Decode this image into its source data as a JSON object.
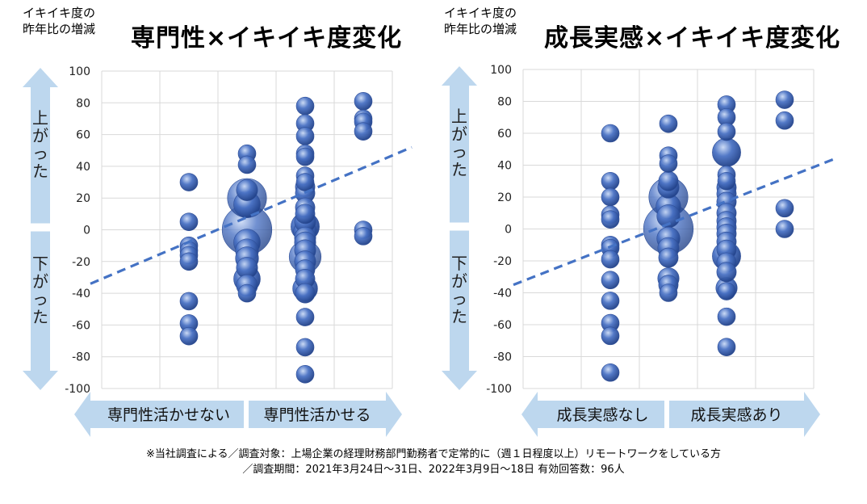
{
  "footnote": {
    "line1": "※当社調査による／調査対象：上場企業の経理財務部門勤務者で定常的に（週１日程度以上）リモートワークをしている方",
    "line2": "／調査期間：2021年3月24日〜31日、2022年3月9日〜18日 有効回答数：96人"
  },
  "colors": {
    "bubble": "#4a72c4",
    "trend": "#4472c4",
    "arrow": "#bdd7ee",
    "grid": "#d9d9d9"
  },
  "chart_data": [
    {
      "type": "scatter",
      "title": "専門性×イキイキ度変化",
      "ylabel": "イキイキ度の昨年比の増減",
      "ylim": [
        -100,
        100
      ],
      "yticks": [
        100,
        80,
        60,
        40,
        20,
        0,
        -20,
        -40,
        -60,
        -80,
        -100
      ],
      "y_arrow_up": "上がった",
      "y_arrow_down": "下がった",
      "x_arrow_left": "専門性活かせない",
      "x_arrow_right": "専門性活かせる",
      "x_categories": 5,
      "grid": true,
      "trendline": {
        "y_left": -34,
        "y_right": 52
      },
      "points": [
        {
          "x": 1,
          "y": 30,
          "s": 1
        },
        {
          "x": 1,
          "y": 5,
          "s": 1
        },
        {
          "x": 1,
          "y": -10,
          "s": 1
        },
        {
          "x": 1,
          "y": -13,
          "s": 1
        },
        {
          "x": 1,
          "y": -16,
          "s": 1
        },
        {
          "x": 1,
          "y": -20,
          "s": 1
        },
        {
          "x": 1,
          "y": -45,
          "s": 1
        },
        {
          "x": 1,
          "y": -59,
          "s": 1
        },
        {
          "x": 1,
          "y": -67,
          "s": 1
        },
        {
          "x": 2,
          "y": 48,
          "s": 1
        },
        {
          "x": 2,
          "y": 41,
          "s": 1
        },
        {
          "x": 2,
          "y": 25,
          "s": 1.2
        },
        {
          "x": 2,
          "y": 20,
          "s": 2.2
        },
        {
          "x": 2,
          "y": 16,
          "s": 1.5
        },
        {
          "x": 2,
          "y": 0,
          "s": 2.8
        },
        {
          "x": 2,
          "y": -8,
          "s": 1.5
        },
        {
          "x": 2,
          "y": -13,
          "s": 1.3
        },
        {
          "x": 2,
          "y": -18,
          "s": 1.3
        },
        {
          "x": 2,
          "y": -24,
          "s": 1.2
        },
        {
          "x": 2,
          "y": -31,
          "s": 1.5
        },
        {
          "x": 2,
          "y": -35,
          "s": 1.2
        },
        {
          "x": 2,
          "y": -40,
          "s": 1
        },
        {
          "x": 3,
          "y": 78,
          "s": 1
        },
        {
          "x": 3,
          "y": 67,
          "s": 1
        },
        {
          "x": 3,
          "y": 59,
          "s": 1
        },
        {
          "x": 3,
          "y": 48,
          "s": 1
        },
        {
          "x": 3,
          "y": 46,
          "s": 1
        },
        {
          "x": 3,
          "y": 34,
          "s": 1
        },
        {
          "x": 3,
          "y": 30,
          "s": 1
        },
        {
          "x": 3,
          "y": 27,
          "s": 1.1
        },
        {
          "x": 3,
          "y": 23,
          "s": 1.1
        },
        {
          "x": 3,
          "y": 14,
          "s": 1.1
        },
        {
          "x": 3,
          "y": 10,
          "s": 1.1
        },
        {
          "x": 3,
          "y": 5,
          "s": 1.2
        },
        {
          "x": 3,
          "y": 2,
          "s": 1.6
        },
        {
          "x": 3,
          "y": -1,
          "s": 1.3
        },
        {
          "x": 3,
          "y": -5,
          "s": 1.2
        },
        {
          "x": 3,
          "y": -8,
          "s": 1.2
        },
        {
          "x": 3,
          "y": -13,
          "s": 1.2
        },
        {
          "x": 3,
          "y": -17,
          "s": 1.8
        },
        {
          "x": 3,
          "y": -20,
          "s": 1.2
        },
        {
          "x": 3,
          "y": -25,
          "s": 1.1
        },
        {
          "x": 3,
          "y": -31,
          "s": 1.1
        },
        {
          "x": 3,
          "y": -37,
          "s": 1.4
        },
        {
          "x": 3,
          "y": -40,
          "s": 1.1
        },
        {
          "x": 3,
          "y": -55,
          "s": 1
        },
        {
          "x": 3,
          "y": -74,
          "s": 1
        },
        {
          "x": 3,
          "y": -91,
          "s": 1
        },
        {
          "x": 4,
          "y": 81,
          "s": 1
        },
        {
          "x": 4,
          "y": 70,
          "s": 1
        },
        {
          "x": 4,
          "y": 68,
          "s": 1
        },
        {
          "x": 4,
          "y": 62,
          "s": 1
        },
        {
          "x": 4,
          "y": 0,
          "s": 1
        },
        {
          "x": 4,
          "y": -4,
          "s": 1
        }
      ]
    },
    {
      "type": "scatter",
      "title": "成長実感×イキイキ度変化",
      "ylabel": "イキイキ度の昨年比の増減",
      "ylim": [
        -100,
        100
      ],
      "yticks": [
        100,
        80,
        60,
        40,
        20,
        0,
        -20,
        -40,
        -60,
        -80,
        -100
      ],
      "y_arrow_up": "上がった",
      "y_arrow_down": "下がった",
      "x_arrow_left": "成長実感なし",
      "x_arrow_right": "成長実感あり",
      "x_categories": 5,
      "grid": true,
      "trendline": {
        "y_left": -35,
        "y_right": 44
      },
      "points": [
        {
          "x": 1,
          "y": 60,
          "s": 1
        },
        {
          "x": 1,
          "y": 30,
          "s": 1
        },
        {
          "x": 1,
          "y": 20,
          "s": 1
        },
        {
          "x": 1,
          "y": 9,
          "s": 1
        },
        {
          "x": 1,
          "y": 6,
          "s": 1
        },
        {
          "x": 1,
          "y": -10,
          "s": 1
        },
        {
          "x": 1,
          "y": -12,
          "s": 1
        },
        {
          "x": 1,
          "y": -19,
          "s": 1
        },
        {
          "x": 1,
          "y": -32,
          "s": 1
        },
        {
          "x": 1,
          "y": -45,
          "s": 1
        },
        {
          "x": 1,
          "y": -59,
          "s": 1
        },
        {
          "x": 1,
          "y": -67,
          "s": 1
        },
        {
          "x": 1,
          "y": -90,
          "s": 1
        },
        {
          "x": 2,
          "y": 66,
          "s": 1
        },
        {
          "x": 2,
          "y": 46,
          "s": 1
        },
        {
          "x": 2,
          "y": 41,
          "s": 1
        },
        {
          "x": 2,
          "y": 30,
          "s": 1.1
        },
        {
          "x": 2,
          "y": 26,
          "s": 1.2
        },
        {
          "x": 2,
          "y": 20,
          "s": 2.2
        },
        {
          "x": 2,
          "y": 14,
          "s": 1.4
        },
        {
          "x": 2,
          "y": 8,
          "s": 1.3
        },
        {
          "x": 2,
          "y": 0,
          "s": 2.8
        },
        {
          "x": 2,
          "y": -6,
          "s": 1.3
        },
        {
          "x": 2,
          "y": -12,
          "s": 1.2
        },
        {
          "x": 2,
          "y": -18,
          "s": 1.1
        },
        {
          "x": 2,
          "y": -31,
          "s": 1.2
        },
        {
          "x": 2,
          "y": -35,
          "s": 1.1
        },
        {
          "x": 2,
          "y": -40,
          "s": 1
        },
        {
          "x": 3,
          "y": 78,
          "s": 1
        },
        {
          "x": 3,
          "y": 70,
          "s": 1
        },
        {
          "x": 3,
          "y": 61,
          "s": 1
        },
        {
          "x": 3,
          "y": 48,
          "s": 1.6
        },
        {
          "x": 3,
          "y": 34,
          "s": 1
        },
        {
          "x": 3,
          "y": 30,
          "s": 1
        },
        {
          "x": 3,
          "y": 26,
          "s": 1.1
        },
        {
          "x": 3,
          "y": 22,
          "s": 1.1
        },
        {
          "x": 3,
          "y": 17,
          "s": 1.1
        },
        {
          "x": 3,
          "y": 10,
          "s": 1.1
        },
        {
          "x": 3,
          "y": 5,
          "s": 1.1
        },
        {
          "x": 3,
          "y": 1,
          "s": 1.1
        },
        {
          "x": 3,
          "y": -3,
          "s": 1.1
        },
        {
          "x": 3,
          "y": -8,
          "s": 1.1
        },
        {
          "x": 3,
          "y": -13,
          "s": 1.1
        },
        {
          "x": 3,
          "y": -17,
          "s": 1.6
        },
        {
          "x": 3,
          "y": -21,
          "s": 1.1
        },
        {
          "x": 3,
          "y": -27,
          "s": 1.1
        },
        {
          "x": 3,
          "y": -37,
          "s": 1.2
        },
        {
          "x": 3,
          "y": -39,
          "s": 1
        },
        {
          "x": 3,
          "y": -55,
          "s": 1
        },
        {
          "x": 3,
          "y": -74,
          "s": 1
        },
        {
          "x": 4,
          "y": 81,
          "s": 1
        },
        {
          "x": 4,
          "y": 68,
          "s": 1
        },
        {
          "x": 4,
          "y": 13,
          "s": 1
        },
        {
          "x": 4,
          "y": 0,
          "s": 1
        }
      ]
    }
  ]
}
